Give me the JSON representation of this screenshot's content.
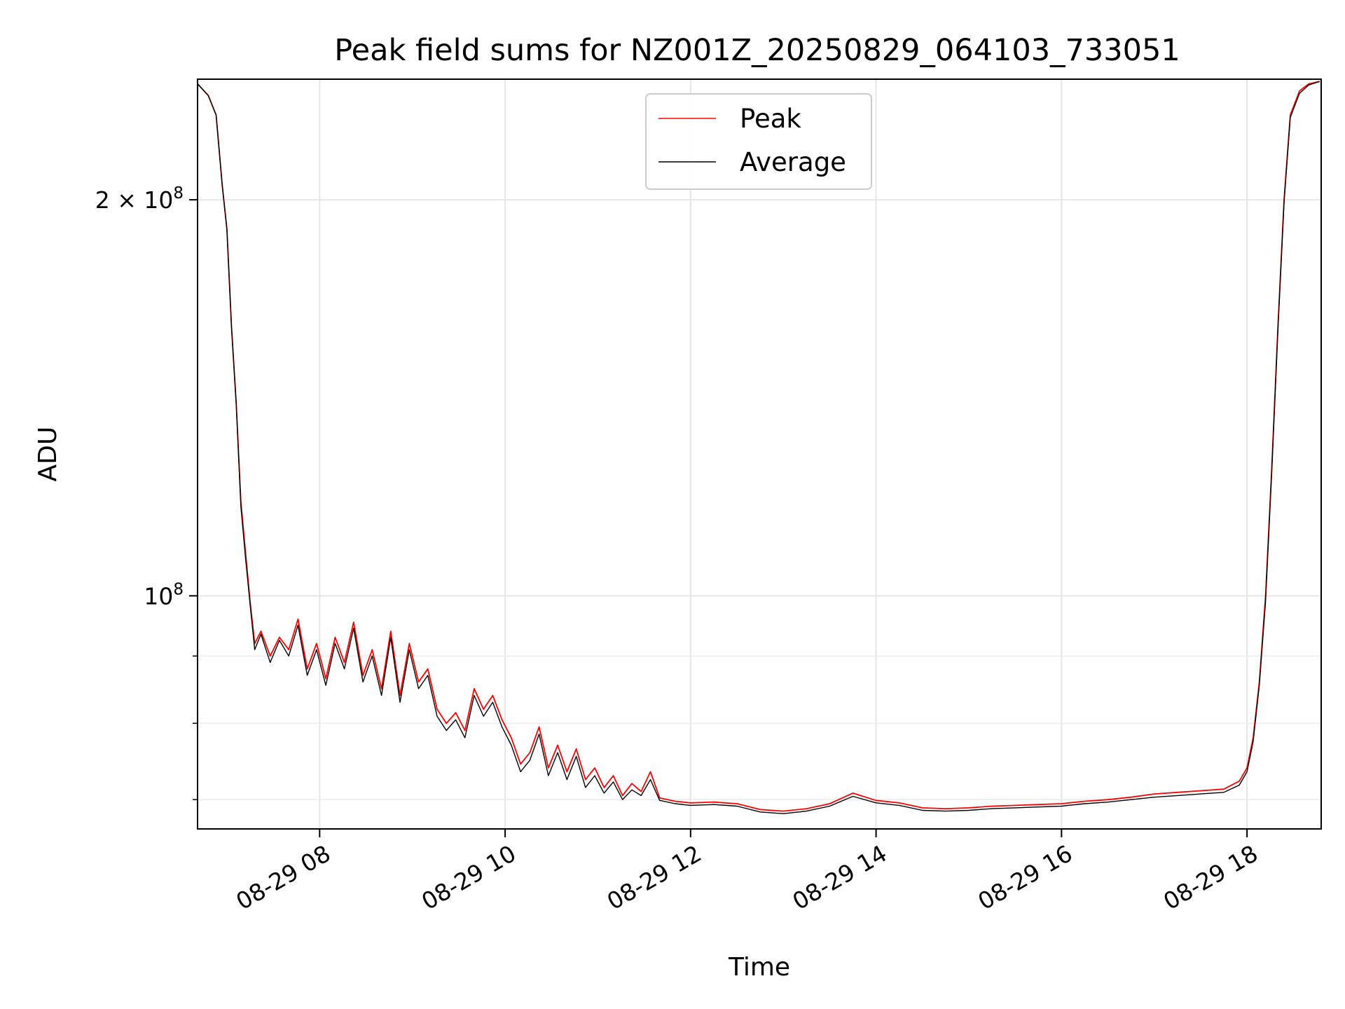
{
  "chart_data": {
    "type": "line",
    "title": "Peak field sums for NZ001Z_20250829_064103_733051",
    "xlabel": "Time",
    "ylabel": "ADU",
    "yscale": "log",
    "xlim": [
      "2025-08-29T06:41",
      "2025-08-29T18:48"
    ],
    "ylim": [
      66500000,
      247000000
    ],
    "grid": true,
    "legend": {
      "placement": "upper center"
    },
    "x_ticks": [
      {
        "t": "2025-08-29T08:00",
        "label": "08-29 08"
      },
      {
        "t": "2025-08-29T10:00",
        "label": "08-29 10"
      },
      {
        "t": "2025-08-29T12:00",
        "label": "08-29 12"
      },
      {
        "t": "2025-08-29T14:00",
        "label": "08-29 14"
      },
      {
        "t": "2025-08-29T16:00",
        "label": "08-29 16"
      },
      {
        "t": "2025-08-29T18:00",
        "label": "08-29 18"
      }
    ],
    "y_major_ticks": [
      {
        "value": 100000000,
        "base": "10",
        "exp": "8"
      },
      {
        "value": 200000000,
        "base": "2 × 10",
        "exp": "8"
      }
    ],
    "y_minor_ticks": [
      60000000,
      70000000,
      80000000,
      90000000
    ],
    "series": [
      {
        "name": "Peak",
        "color": "#ff0000",
        "points": [
          [
            "06:41",
            245000000
          ],
          [
            "06:48",
            240000000
          ],
          [
            "06:53",
            232000000
          ],
          [
            "06:57",
            205000000
          ],
          [
            "07:00",
            190000000
          ],
          [
            "07:03",
            160000000
          ],
          [
            "07:06",
            140000000
          ],
          [
            "07:09",
            118000000
          ],
          [
            "07:12",
            108000000
          ],
          [
            "07:15",
            99000000
          ],
          [
            "07:18",
            92000000
          ],
          [
            "07:22",
            94000000
          ],
          [
            "07:28",
            90000000
          ],
          [
            "07:34",
            93000000
          ],
          [
            "07:40",
            91000000
          ],
          [
            "07:46",
            96000000
          ],
          [
            "07:52",
            88000000
          ],
          [
            "07:58",
            92000000
          ],
          [
            "08:04",
            86500000
          ],
          [
            "08:10",
            93000000
          ],
          [
            "08:16",
            89000000
          ],
          [
            "08:22",
            95500000
          ],
          [
            "08:28",
            87000000
          ],
          [
            "08:34",
            91000000
          ],
          [
            "08:40",
            85000000
          ],
          [
            "08:46",
            94000000
          ],
          [
            "08:52",
            84000000
          ],
          [
            "08:58",
            92000000
          ],
          [
            "09:04",
            86000000
          ],
          [
            "09:10",
            88000000
          ],
          [
            "09:16",
            82000000
          ],
          [
            "09:22",
            80000000
          ],
          [
            "09:28",
            81500000
          ],
          [
            "09:34",
            79000000
          ],
          [
            "09:40",
            85000000
          ],
          [
            "09:46",
            82000000
          ],
          [
            "09:52",
            84000000
          ],
          [
            "09:58",
            80500000
          ],
          [
            "10:04",
            78000000
          ],
          [
            "10:10",
            74500000
          ],
          [
            "10:16",
            76000000
          ],
          [
            "10:22",
            79500000
          ],
          [
            "10:28",
            74000000
          ],
          [
            "10:34",
            77000000
          ],
          [
            "10:40",
            73500000
          ],
          [
            "10:46",
            76500000
          ],
          [
            "10:52",
            72500000
          ],
          [
            "10:58",
            74000000
          ],
          [
            "11:04",
            71500000
          ],
          [
            "11:10",
            73000000
          ],
          [
            "11:16",
            70500000
          ],
          [
            "11:22",
            72000000
          ],
          [
            "11:28",
            71000000
          ],
          [
            "11:34",
            73500000
          ],
          [
            "11:40",
            70200000
          ],
          [
            "11:50",
            69800000
          ],
          [
            "12:00",
            69600000
          ],
          [
            "12:15",
            69700000
          ],
          [
            "12:30",
            69500000
          ],
          [
            "12:45",
            68800000
          ],
          [
            "13:00",
            68600000
          ],
          [
            "13:15",
            68900000
          ],
          [
            "13:30",
            69500000
          ],
          [
            "13:45",
            70800000
          ],
          [
            "14:00",
            69900000
          ],
          [
            "14:15",
            69600000
          ],
          [
            "14:30",
            69000000
          ],
          [
            "14:45",
            68900000
          ],
          [
            "15:00",
            69000000
          ],
          [
            "15:15",
            69200000
          ],
          [
            "15:30",
            69300000
          ],
          [
            "15:45",
            69400000
          ],
          [
            "16:00",
            69500000
          ],
          [
            "16:15",
            69800000
          ],
          [
            "16:30",
            70000000
          ],
          [
            "16:45",
            70300000
          ],
          [
            "17:00",
            70700000
          ],
          [
            "17:15",
            70900000
          ],
          [
            "17:30",
            71100000
          ],
          [
            "17:45",
            71300000
          ],
          [
            "17:55",
            72300000
          ],
          [
            "18:00",
            74000000
          ],
          [
            "18:04",
            78000000
          ],
          [
            "18:08",
            86000000
          ],
          [
            "18:12",
            100000000
          ],
          [
            "18:16",
            125000000
          ],
          [
            "18:20",
            160000000
          ],
          [
            "18:24",
            200000000
          ],
          [
            "18:28",
            232000000
          ],
          [
            "18:34",
            242000000
          ],
          [
            "18:40",
            245000000
          ],
          [
            "18:47",
            246000000
          ]
        ]
      },
      {
        "name": "Average",
        "color": "#000000",
        "points": [
          [
            "06:41",
            245000000
          ],
          [
            "06:48",
            240000000
          ],
          [
            "06:53",
            232000000
          ],
          [
            "06:57",
            205000000
          ],
          [
            "07:00",
            190000000
          ],
          [
            "07:03",
            160000000
          ],
          [
            "07:06",
            140000000
          ],
          [
            "07:09",
            117000000
          ],
          [
            "07:12",
            107000000
          ],
          [
            "07:15",
            98500000
          ],
          [
            "07:18",
            91000000
          ],
          [
            "07:22",
            93500000
          ],
          [
            "07:28",
            89000000
          ],
          [
            "07:34",
            92500000
          ],
          [
            "07:40",
            90000000
          ],
          [
            "07:46",
            95000000
          ],
          [
            "07:52",
            87000000
          ],
          [
            "07:58",
            91000000
          ],
          [
            "08:04",
            85500000
          ],
          [
            "08:10",
            92000000
          ],
          [
            "08:16",
            88000000
          ],
          [
            "08:22",
            94500000
          ],
          [
            "08:28",
            86000000
          ],
          [
            "08:34",
            90000000
          ],
          [
            "08:40",
            84000000
          ],
          [
            "08:46",
            93000000
          ],
          [
            "08:52",
            83000000
          ],
          [
            "08:58",
            91000000
          ],
          [
            "09:04",
            85000000
          ],
          [
            "09:10",
            87000000
          ],
          [
            "09:16",
            81000000
          ],
          [
            "09:22",
            79000000
          ],
          [
            "09:28",
            80500000
          ],
          [
            "09:34",
            78000000
          ],
          [
            "09:40",
            84000000
          ],
          [
            "09:46",
            81000000
          ],
          [
            "09:52",
            83000000
          ],
          [
            "09:58",
            79500000
          ],
          [
            "10:04",
            77000000
          ],
          [
            "10:10",
            73500000
          ],
          [
            "10:16",
            75000000
          ],
          [
            "10:22",
            78500000
          ],
          [
            "10:28",
            73000000
          ],
          [
            "10:34",
            76000000
          ],
          [
            "10:40",
            72500000
          ],
          [
            "10:46",
            75500000
          ],
          [
            "10:52",
            71500000
          ],
          [
            "10:58",
            73000000
          ],
          [
            "11:04",
            70800000
          ],
          [
            "11:10",
            72200000
          ],
          [
            "11:16",
            70000000
          ],
          [
            "11:22",
            71200000
          ],
          [
            "11:28",
            70500000
          ],
          [
            "11:34",
            72500000
          ],
          [
            "11:40",
            69900000
          ],
          [
            "11:50",
            69500000
          ],
          [
            "12:00",
            69300000
          ],
          [
            "12:15",
            69400000
          ],
          [
            "12:30",
            69200000
          ],
          [
            "12:45",
            68500000
          ],
          [
            "13:00",
            68300000
          ],
          [
            "13:15",
            68600000
          ],
          [
            "13:30",
            69200000
          ],
          [
            "13:45",
            70400000
          ],
          [
            "14:00",
            69600000
          ],
          [
            "14:15",
            69300000
          ],
          [
            "14:30",
            68700000
          ],
          [
            "14:45",
            68600000
          ],
          [
            "15:00",
            68700000
          ],
          [
            "15:15",
            68900000
          ],
          [
            "15:30",
            69000000
          ],
          [
            "15:45",
            69100000
          ],
          [
            "16:00",
            69200000
          ],
          [
            "16:15",
            69500000
          ],
          [
            "16:30",
            69700000
          ],
          [
            "16:45",
            70000000
          ],
          [
            "17:00",
            70300000
          ],
          [
            "17:15",
            70500000
          ],
          [
            "17:30",
            70700000
          ],
          [
            "17:45",
            70900000
          ],
          [
            "17:55",
            71800000
          ],
          [
            "18:00",
            73500000
          ],
          [
            "18:04",
            77500000
          ],
          [
            "18:08",
            85500000
          ],
          [
            "18:12",
            99000000
          ],
          [
            "18:16",
            124000000
          ],
          [
            "18:20",
            159000000
          ],
          [
            "18:24",
            199000000
          ],
          [
            "18:28",
            231000000
          ],
          [
            "18:34",
            241000000
          ],
          [
            "18:40",
            244500000
          ],
          [
            "18:47",
            246000000
          ]
        ]
      }
    ]
  }
}
